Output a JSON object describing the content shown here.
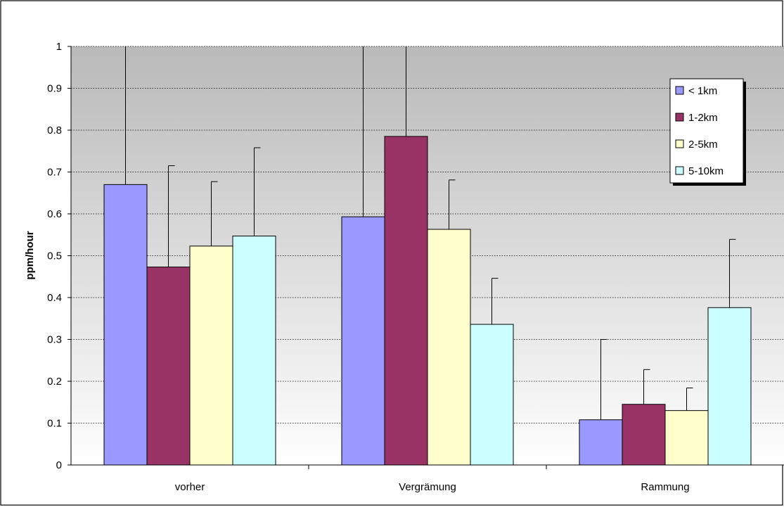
{
  "chart_data": {
    "type": "bar",
    "title": "",
    "xlabel": "",
    "ylabel": "ppm/hour",
    "ylim": [
      0,
      1
    ],
    "yticks": [
      "0",
      "0.1",
      "0.2",
      "0.3",
      "0.4",
      "0.5",
      "0.6",
      "0.7",
      "0.8",
      "0.9",
      "1"
    ],
    "categories": [
      "vorher",
      "Vergrämung",
      "Rammung"
    ],
    "series": [
      {
        "name": "< 1km",
        "color": "#9999ff",
        "values": [
          0.67,
          0.593,
          0.108
        ],
        "err": [
          0.6,
          0.55,
          0.192
        ]
      },
      {
        "name": "1-2km",
        "color": "#993366",
        "values": [
          0.473,
          0.785,
          0.145
        ],
        "err": [
          0.242,
          0.49,
          0.083
        ]
      },
      {
        "name": "2-5km",
        "color": "#ffffcc",
        "values": [
          0.523,
          0.563,
          0.13
        ],
        "err": [
          0.154,
          0.118,
          0.054
        ]
      },
      {
        "name": "5-10km",
        "color": "#ccffff",
        "values": [
          0.547,
          0.336,
          0.376
        ],
        "err": [
          0.211,
          0.11,
          0.163
        ]
      }
    ],
    "grid": true,
    "legend": "top-right",
    "plot_background": "gray-to-white vertical gradient"
  }
}
